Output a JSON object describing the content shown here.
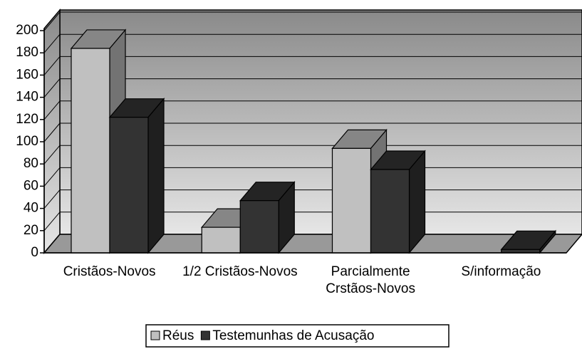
{
  "chart_data": {
    "type": "bar3d",
    "categories": [
      "Cristãos-Novos",
      "1/2 Cristãos-Novos",
      "Parcialmente Crstãos-Novos",
      "S/informação"
    ],
    "series": [
      {
        "name": "Réus",
        "color": "#c0c0c0",
        "values": [
          184,
          23,
          94,
          0
        ]
      },
      {
        "name": "Testemunhas de Acusação",
        "color": "#333333",
        "values": [
          122,
          47,
          75,
          3
        ]
      }
    ],
    "ylim": [
      0,
      200
    ],
    "yticks": [
      0,
      20,
      40,
      60,
      80,
      100,
      120,
      140,
      160,
      180,
      200
    ],
    "grid": true,
    "legend": "bottom"
  }
}
